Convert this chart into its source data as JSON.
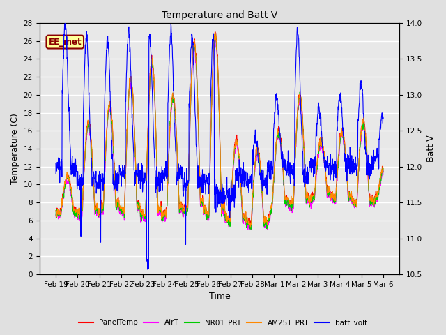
{
  "title": "Temperature and Batt V",
  "xlabel": "Time",
  "ylabel_left": "Temperature (C)",
  "ylabel_right": "Batt V",
  "ylim_left": [
    0,
    28
  ],
  "ylim_right": [
    10.5,
    14.0
  ],
  "yticks_left": [
    0,
    2,
    4,
    6,
    8,
    10,
    12,
    14,
    16,
    18,
    20,
    22,
    24,
    26,
    28
  ],
  "yticks_right": [
    10.5,
    11.0,
    11.5,
    12.0,
    12.5,
    13.0,
    13.5,
    14.0
  ],
  "xtick_labels": [
    "Feb 19",
    "Feb 20",
    "Feb 21",
    "Feb 22",
    "Feb 23",
    "Feb 24",
    "Feb 25",
    "Feb 26",
    "Feb 27",
    "Feb 28",
    "Mar 1",
    "Mar 2",
    "Mar 3",
    "Mar 4",
    "Mar 5",
    "Mar 6"
  ],
  "annotation_text": "EE_met",
  "annotation_color": "#8B0000",
  "annotation_bg": "#FFFF99",
  "bg_color": "#E0E0E0",
  "plot_bg": "#E8E8E8",
  "grid_color": "#FFFFFF",
  "legend_entries": [
    {
      "label": "PanelTemp",
      "color": "#FF0000"
    },
    {
      "label": "AirT",
      "color": "#FF00FF"
    },
    {
      "label": "NR01_PRT",
      "color": "#00CC00"
    },
    {
      "label": "AM25T_PRT",
      "color": "#FF8800"
    },
    {
      "label": "batt_volt",
      "color": "#0000FF"
    }
  ],
  "n_days": 15.5,
  "pts_per_day": 96,
  "seed": 42
}
